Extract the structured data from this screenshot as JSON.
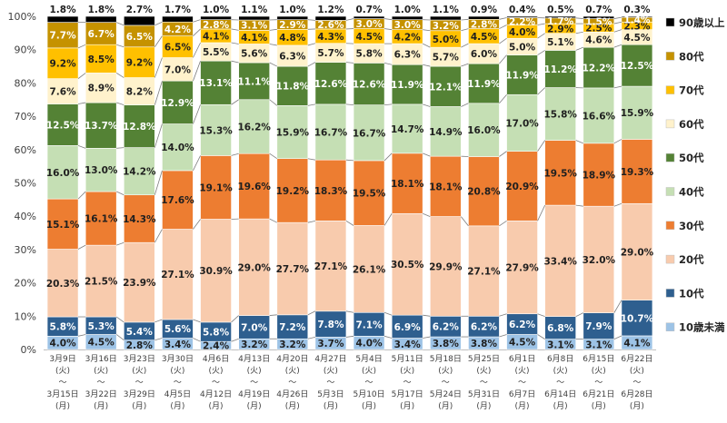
{
  "chart_data": {
    "type": "bar",
    "stacked": true,
    "normalized": true,
    "title": "",
    "xlabel": "",
    "ylabel": "",
    "ylim": [
      0,
      100
    ],
    "y_ticks": [
      "0%",
      "10%",
      "20%",
      "30%",
      "40%",
      "50%",
      "60%",
      "70%",
      "80%",
      "90%",
      "100%"
    ],
    "categories": [
      {
        "start": "3月9日",
        "start_dow": "(火)",
        "tilde": "～",
        "end": "3月15日",
        "end_dow": "(月)"
      },
      {
        "start": "3月16日",
        "start_dow": "(火)",
        "tilde": "～",
        "end": "3月22日",
        "end_dow": "(月)"
      },
      {
        "start": "3月23日",
        "start_dow": "(火)",
        "tilde": "～",
        "end": "3月29日",
        "end_dow": "(月)"
      },
      {
        "start": "3月30日",
        "start_dow": "(火)",
        "tilde": "～",
        "end": "4月5日",
        "end_dow": "(月)"
      },
      {
        "start": "4月6日",
        "start_dow": "(火)",
        "tilde": "～",
        "end": "4月12日",
        "end_dow": "(月)"
      },
      {
        "start": "4月13日",
        "start_dow": "(火)",
        "tilde": "～",
        "end": "4月19日",
        "end_dow": "(月)"
      },
      {
        "start": "4月20日",
        "start_dow": "(火)",
        "tilde": "～",
        "end": "4月26日",
        "end_dow": "(月)"
      },
      {
        "start": "4月27日",
        "start_dow": "(火)",
        "tilde": "～",
        "end": "5月3日",
        "end_dow": "(月)"
      },
      {
        "start": "5月4日",
        "start_dow": "(火)",
        "tilde": "～",
        "end": "5月10日",
        "end_dow": "(月)"
      },
      {
        "start": "5月11日",
        "start_dow": "(火)",
        "tilde": "～",
        "end": "5月17日",
        "end_dow": "(月)"
      },
      {
        "start": "5月18日",
        "start_dow": "(火)",
        "tilde": "～",
        "end": "5月24日",
        "end_dow": "(月)"
      },
      {
        "start": "5月25日",
        "start_dow": "(火)",
        "tilde": "～",
        "end": "5月31日",
        "end_dow": "(月)"
      },
      {
        "start": "6月1日",
        "start_dow": "(火)",
        "tilde": "～",
        "end": "6月7日",
        "end_dow": "(月)"
      },
      {
        "start": "6月8日",
        "start_dow": "(火)",
        "tilde": "～",
        "end": "6月14日",
        "end_dow": "(月)"
      },
      {
        "start": "6月15日",
        "start_dow": "(火)",
        "tilde": "～",
        "end": "6月21日",
        "end_dow": "(月)"
      },
      {
        "start": "6月22日",
        "start_dow": "(火)",
        "tilde": "～",
        "end": "6月28日",
        "end_dow": "(月)"
      }
    ],
    "series": [
      {
        "name": "10歳未満",
        "color": "#9dc3e6",
        "label_color": "#1f1f1f",
        "values": [
          4.0,
          4.5,
          2.8,
          3.4,
          2.4,
          3.2,
          3.2,
          3.7,
          4.0,
          3.4,
          3.8,
          3.8,
          4.5,
          3.1,
          3.1,
          4.1
        ]
      },
      {
        "name": "10代",
        "color": "#2e5f8f",
        "label_color": "#ffffff",
        "values": [
          5.8,
          5.3,
          5.4,
          5.6,
          5.8,
          7.0,
          7.2,
          7.8,
          7.1,
          6.9,
          6.2,
          6.2,
          6.2,
          6.8,
          7.9,
          10.7
        ]
      },
      {
        "name": "20代",
        "color": "#f8cbad",
        "label_color": "#1f1f1f",
        "values": [
          20.3,
          21.5,
          23.9,
          27.1,
          30.9,
          29.0,
          27.7,
          27.1,
          26.1,
          30.5,
          29.9,
          27.1,
          27.9,
          33.4,
          32.0,
          29.0
        ]
      },
      {
        "name": "30代",
        "color": "#ed7d31",
        "label_color": "#1f1f1f",
        "values": [
          15.1,
          16.1,
          14.3,
          17.6,
          19.1,
          19.6,
          19.2,
          18.3,
          19.5,
          18.1,
          18.1,
          20.8,
          20.9,
          19.5,
          18.9,
          19.3
        ]
      },
      {
        "name": "40代",
        "color": "#c5dfb4",
        "label_color": "#1f1f1f",
        "values": [
          16.0,
          13.0,
          14.2,
          14.0,
          15.3,
          16.2,
          15.9,
          16.7,
          16.7,
          14.7,
          14.9,
          16.0,
          17.0,
          15.8,
          16.6,
          15.9
        ]
      },
      {
        "name": "50代",
        "color": "#548235",
        "label_color": "#ffffff",
        "values": [
          12.5,
          13.7,
          12.8,
          12.9,
          13.1,
          11.1,
          11.8,
          12.6,
          12.6,
          11.9,
          12.1,
          11.9,
          11.9,
          11.2,
          12.2,
          12.5
        ]
      },
      {
        "name": "60代",
        "color": "#fff2cc",
        "label_color": "#1f1f1f",
        "values": [
          7.6,
          8.9,
          8.2,
          7.0,
          5.5,
          5.6,
          6.3,
          5.7,
          5.8,
          6.3,
          5.7,
          6.0,
          5.0,
          5.1,
          4.6,
          4.5
        ]
      },
      {
        "name": "70代",
        "color": "#ffc000",
        "label_color": "#1f1f1f",
        "values": [
          9.2,
          8.5,
          9.2,
          6.5,
          4.1,
          4.1,
          4.8,
          4.3,
          4.5,
          4.2,
          5.0,
          4.5,
          4.0,
          2.9,
          2.5,
          2.3
        ]
      },
      {
        "name": "80代",
        "color": "#c59200",
        "label_color": "#ffffff",
        "values": [
          7.7,
          6.7,
          6.5,
          4.2,
          2.8,
          3.1,
          2.9,
          2.6,
          3.0,
          3.0,
          3.2,
          2.8,
          2.2,
          1.7,
          1.5,
          1.4
        ]
      },
      {
        "name": "90歳以上",
        "color": "#000000",
        "label_color": "#1f1f1f",
        "values": [
          1.8,
          1.8,
          2.7,
          1.7,
          1.0,
          1.1,
          1.0,
          1.2,
          0.7,
          1.0,
          1.1,
          0.9,
          0.4,
          0.5,
          0.7,
          0.3
        ]
      }
    ],
    "legend": {
      "placement": "right",
      "order": "top-to-bottom reversed"
    },
    "grid": false,
    "connector_lines": true
  }
}
